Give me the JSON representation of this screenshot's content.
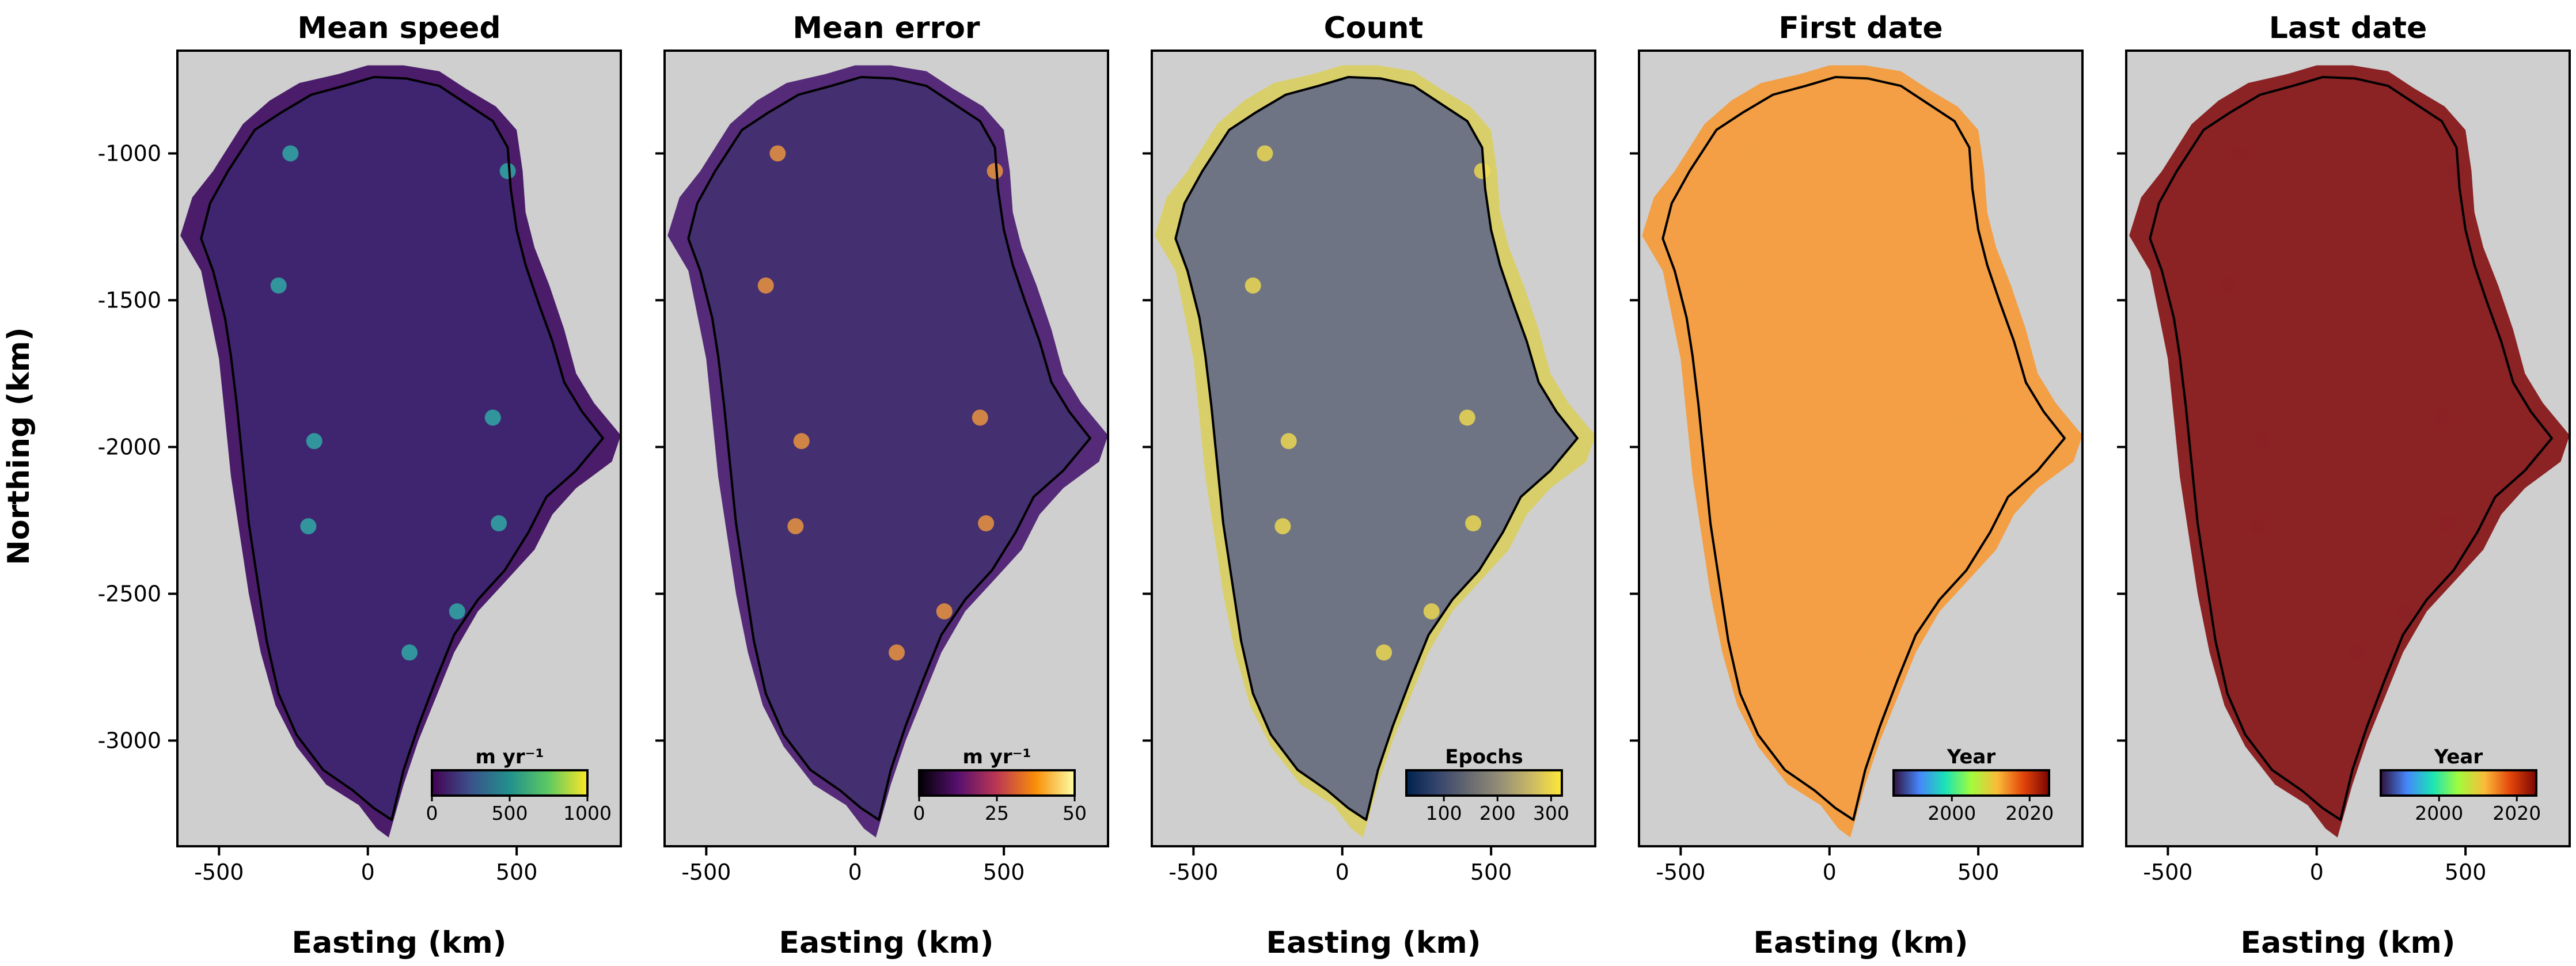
{
  "figure": {
    "ylabel": "Northing (km)",
    "xlabel": "Easting (km)",
    "map_background": "#cfcfcf",
    "coastline_color": "#000000"
  },
  "chart_data": [
    {
      "type": "heatmap",
      "title": "Mean speed",
      "xlabel": "Easting (km)",
      "ylabel": "Northing (km)",
      "xlim": [
        -640,
        850
      ],
      "ylim": [
        -3360,
        -650
      ],
      "xticks": [
        -500,
        0,
        500
      ],
      "xtick_labels": [
        "-500",
        "0",
        "500"
      ],
      "yticks": [
        -1000,
        -1500,
        -2000,
        -2500,
        -3000
      ],
      "ytick_labels": [
        "-1000",
        "-1500",
        "-2000",
        "-2500",
        "-3000"
      ],
      "colorbar": {
        "label": "m yr⁻¹",
        "range": [
          0,
          1000
        ],
        "ticks": [
          0,
          500,
          1000
        ],
        "tick_labels": [
          "0",
          "500",
          "1000"
        ],
        "colormap": "viridis",
        "colors": [
          "#440154",
          "#3b528b",
          "#21918c",
          "#5ec962",
          "#fde725"
        ]
      },
      "fill": "#4a1c6a",
      "interior": "#3d2770",
      "highlights": "#2fb0a8"
    },
    {
      "type": "heatmap",
      "title": "Mean error",
      "xlabel": "Easting (km)",
      "xlim": [
        -640,
        850
      ],
      "ylim": [
        -3360,
        -650
      ],
      "xticks": [
        -500,
        0,
        500
      ],
      "xtick_labels": [
        "-500",
        "0",
        "500"
      ],
      "colorbar": {
        "label": "m yr⁻¹",
        "range": [
          0,
          50
        ],
        "ticks": [
          0,
          25,
          50
        ],
        "tick_labels": [
          "0",
          "25",
          "50"
        ],
        "colormap": "inferno",
        "colors": [
          "#000004",
          "#57106e",
          "#bc3754",
          "#f98e09",
          "#fcffa4"
        ]
      },
      "fill": "#552a78",
      "interior": "#42306e",
      "highlights": "#f49a3c"
    },
    {
      "type": "heatmap",
      "title": "Count",
      "xlabel": "Easting (km)",
      "xlim": [
        -640,
        850
      ],
      "ylim": [
        -3360,
        -650
      ],
      "xticks": [
        -500,
        0,
        500
      ],
      "xtick_labels": [
        "-500",
        "0",
        "500"
      ],
      "colorbar": {
        "label": "Epochs",
        "range": [
          30,
          320
        ],
        "ticks": [
          100,
          200,
          300
        ],
        "tick_labels": [
          "100",
          "200",
          "300"
        ],
        "colormap": "cividis",
        "colors": [
          "#00224e",
          "#35456c",
          "#666970",
          "#948e77",
          "#c8b866",
          "#fee838"
        ]
      },
      "fill": "#d9cf6a",
      "interior": "#5a6487",
      "highlights": "#f2dc4f"
    },
    {
      "type": "heatmap",
      "title": "First date",
      "xlabel": "Easting (km)",
      "xlim": [
        -640,
        850
      ],
      "ylim": [
        -3360,
        -650
      ],
      "xticks": [
        -500,
        0,
        500
      ],
      "xtick_labels": [
        "-500",
        "0",
        "500"
      ],
      "colorbar": {
        "label": "Year",
        "range": [
          1985,
          2025
        ],
        "ticks": [
          2000,
          2020
        ],
        "tick_labels": [
          "2000",
          "2020"
        ],
        "colormap": "turbo",
        "colors": [
          "#30123b",
          "#4686fb",
          "#1ae4b6",
          "#a2fc3c",
          "#fabb39",
          "#e4460a",
          "#7a0403"
        ]
      },
      "fill": "#f39f45",
      "interior": "#f39f45",
      "highlights": "#f39f45"
    },
    {
      "type": "heatmap",
      "title": "Last date",
      "xlabel": "Easting (km)",
      "xlim": [
        -640,
        850
      ],
      "ylim": [
        -3360,
        -650
      ],
      "xticks": [
        -500,
        0,
        500
      ],
      "xtick_labels": [
        "-500",
        "0",
        "500"
      ],
      "colorbar": {
        "label": "Year",
        "range": [
          1985,
          2025
        ],
        "ticks": [
          2000,
          2020
        ],
        "tick_labels": [
          "2000",
          "2020"
        ],
        "colormap": "turbo",
        "colors": [
          "#30123b",
          "#4686fb",
          "#1ae4b6",
          "#a2fc3c",
          "#fabb39",
          "#e4460a",
          "#7a0403"
        ]
      },
      "fill": "#8b2224",
      "interior": "#8b2224",
      "highlights": "#8b2224"
    }
  ]
}
